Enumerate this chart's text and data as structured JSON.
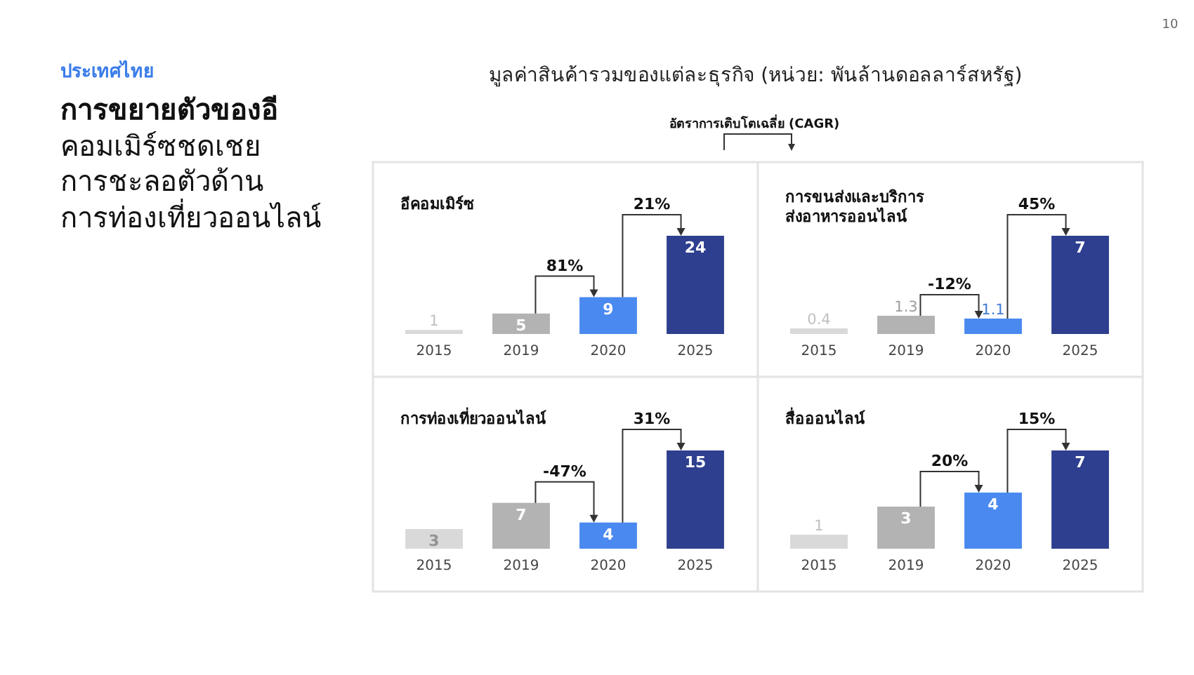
{
  "chart_data": [
    {
      "type": "other",
      "subtitle": "ประเทศไทย",
      "title": "การขยายตัวของอี\nคอมเมิร์ซชดเชย\nการชะลอตัวด้าน\nการท่องเที่ยวออนไลน์",
      "annotations": [
        "มูลค่าสินค้ารวมของแต่ละธุรกิจ (หน่วย: พันล้านดอลลาร์สหรัฐ)",
        "อัตราการเติบโตเฉลี่ย (CAGR)",
        "10"
      ]
    },
    {
      "type": "bar",
      "title": "อีคอมเมิร์ซ",
      "categories": [
        "2015",
        "2019",
        "2020",
        "2025"
      ],
      "values": [
        1,
        5,
        9,
        24
      ],
      "colors": [
        "#d9d9d9",
        "#b3b3b3",
        "#4a8af0",
        "#2d3f8e"
      ],
      "data_labels": true,
      "annotations": [
        "81%",
        "21%"
      ]
    },
    {
      "type": "bar",
      "title": "การขนส่งและบริการ\nส่งอาหารออนไลน์",
      "categories": [
        "2015",
        "2019",
        "2020",
        "2025"
      ],
      "values": [
        0.4,
        1.3,
        1.1,
        7
      ],
      "colors": [
        "#d9d9d9",
        "#b3b3b3",
        "#4a8af0",
        "#2d3f8e"
      ],
      "data_labels": true,
      "annotations": [
        "-12%",
        "45%"
      ]
    },
    {
      "type": "bar",
      "title": "การท่องเที่ยวออนไลน์",
      "categories": [
        "2015",
        "2019",
        "2020",
        "2025"
      ],
      "values": [
        3,
        7,
        4,
        15
      ],
      "colors": [
        "#d9d9d9",
        "#b3b3b3",
        "#4a8af0",
        "#2d3f8e"
      ],
      "data_labels": true,
      "annotations": [
        "-47%",
        "31%"
      ]
    },
    {
      "type": "bar",
      "title": "สื่อออนไลน์",
      "categories": [
        "2015",
        "2019",
        "2020",
        "2025"
      ],
      "values": [
        1,
        3,
        4,
        7
      ],
      "colors": [
        "#d9d9d9",
        "#b3b3b3",
        "#4a8af0",
        "#2d3f8e"
      ],
      "data_labels": true,
      "annotations": [
        "20%",
        "15%"
      ]
    }
  ]
}
